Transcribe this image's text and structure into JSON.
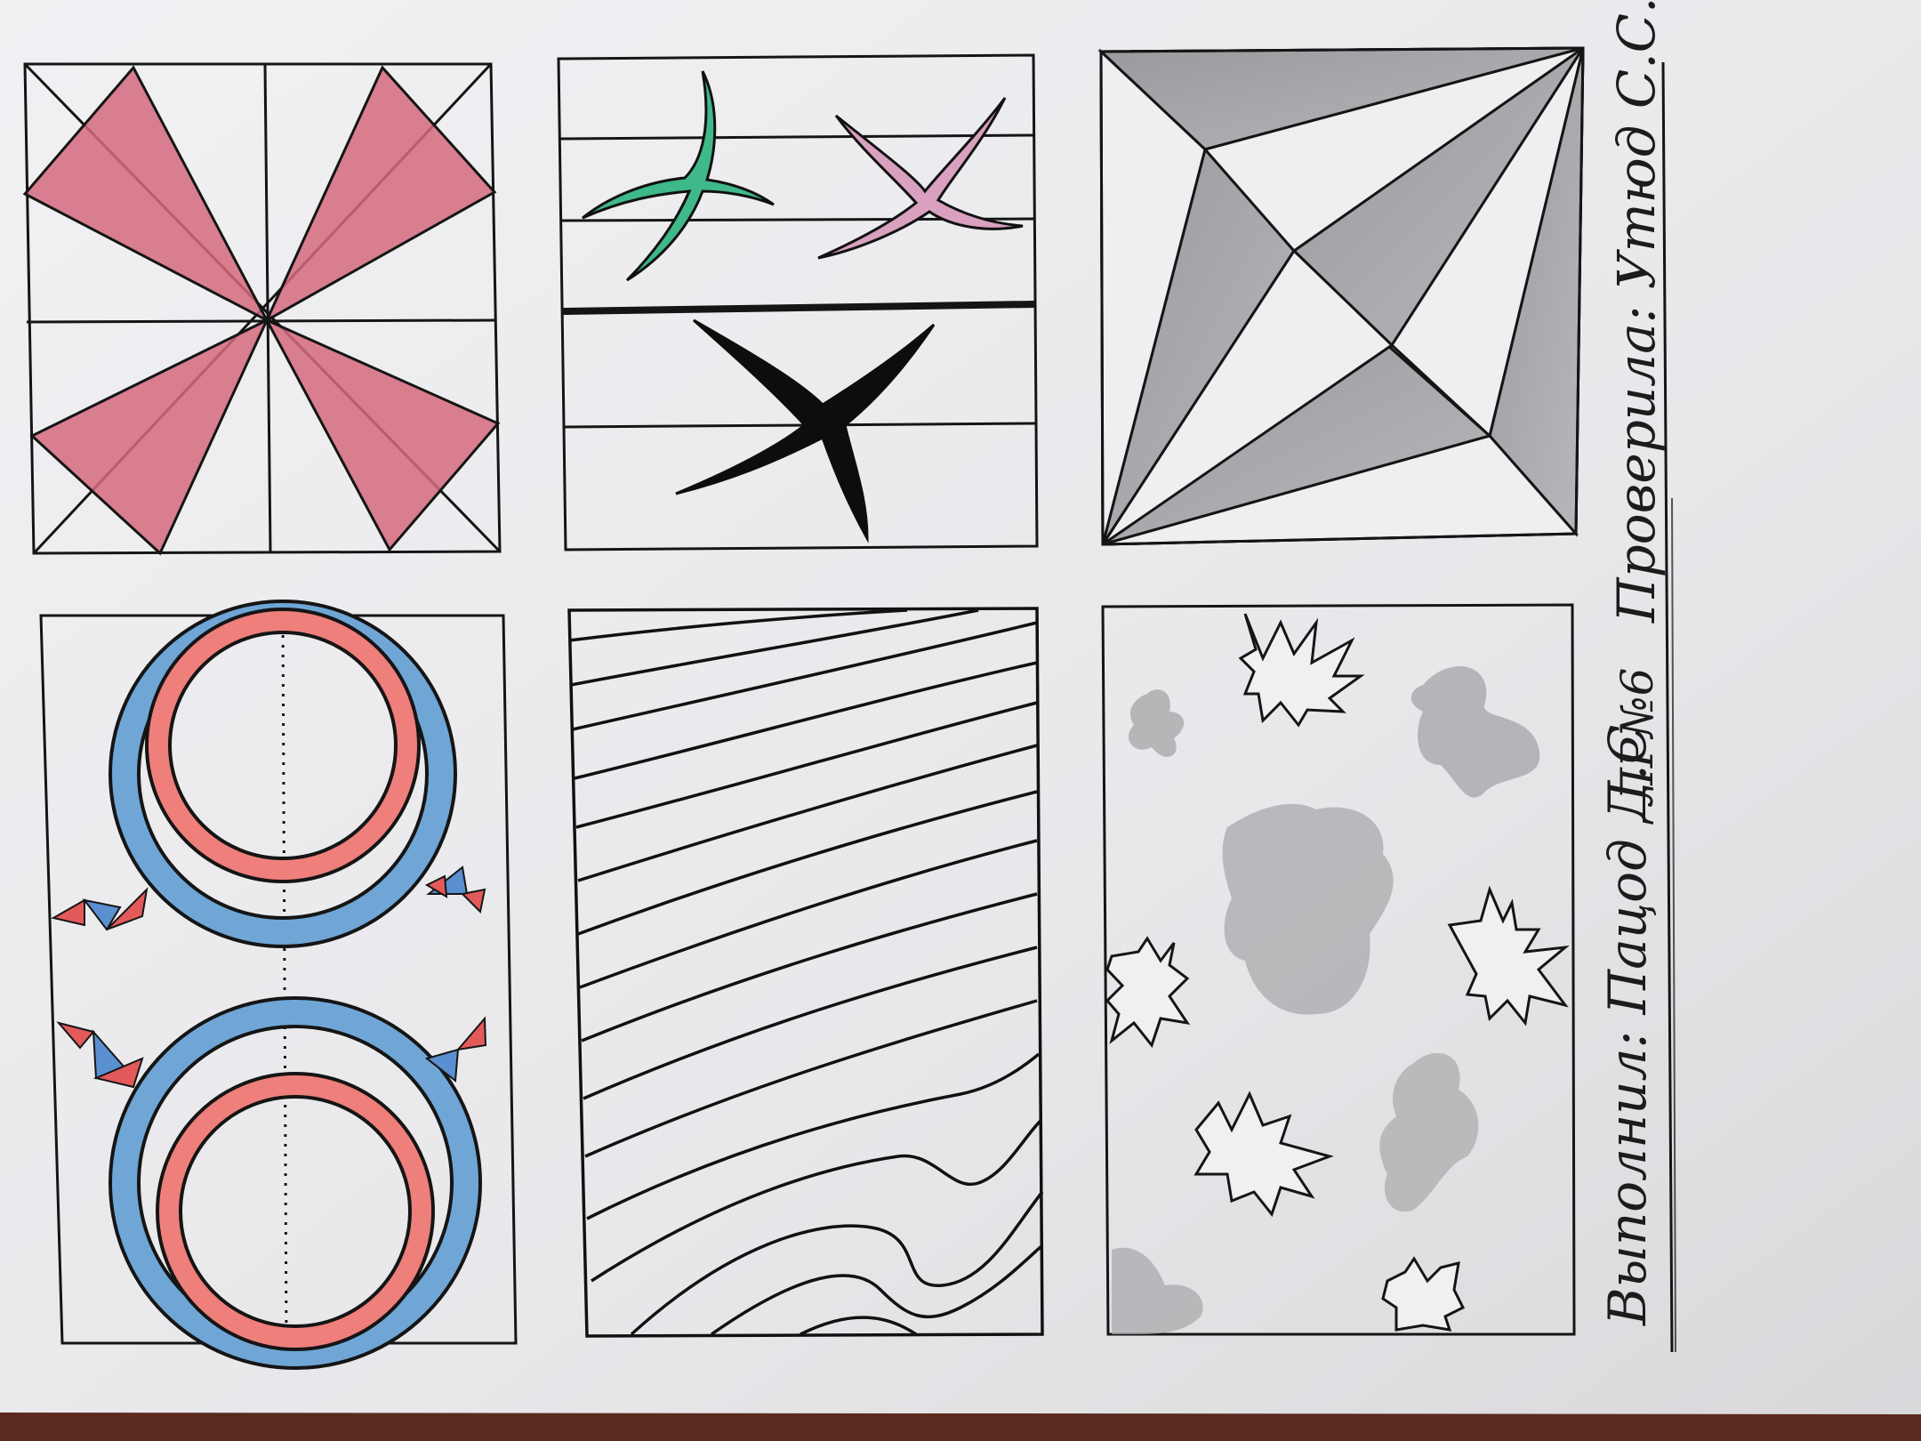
{
  "sheet": {
    "paper_color": "#e9e9ec",
    "ink_color": "#151515",
    "table_color": "#5a2a1e"
  },
  "panels": [
    {
      "id": "pinwheel",
      "fill_color": "#d46a7e"
    },
    {
      "id": "crosses",
      "fill_colors": [
        "#3fb98a",
        "#d9a0bf",
        "#0d0d0d"
      ]
    },
    {
      "id": "envelope",
      "fill_color": "#8e8e92"
    },
    {
      "id": "rings",
      "outer_ring_color": "#6fa6d6",
      "inner_ring_color": "#ee7f7b",
      "flag_colors": [
        "#e25a5a",
        "#5a8fd0"
      ]
    },
    {
      "id": "waves",
      "line_color": "#111111"
    },
    {
      "id": "spots",
      "blob_color": "#a9a9ad",
      "star_fill": "#f0f0f2"
    }
  ],
  "caption": {
    "author_line": "Выполнил: Пацод Д.С",
    "work_number": "ЛР№6",
    "checker_line": "Проверила: Утюд С.С."
  }
}
